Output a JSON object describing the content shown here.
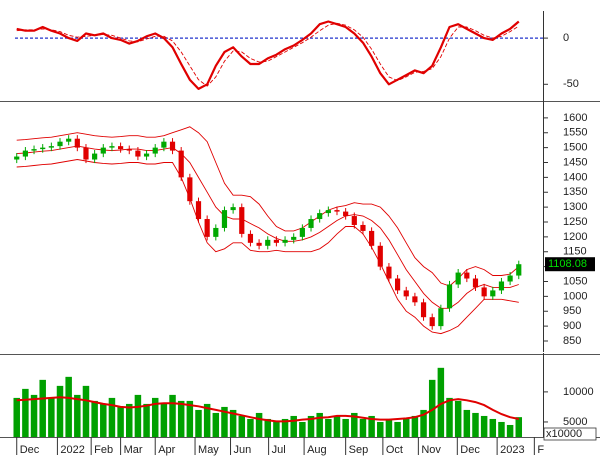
{
  "chart_data": [
    {
      "type": "line",
      "ylim": [
        -67,
        25
      ],
      "yticks": [
        0,
        -50
      ],
      "zero_line_color": "#2233cc",
      "series": [
        {
          "color": "#e00000",
          "width": 2.2,
          "dashed": false,
          "values": [
            10,
            8,
            8,
            12,
            8,
            5,
            0,
            -3,
            5,
            3,
            5,
            0,
            -2,
            -6,
            -3,
            2,
            5,
            0,
            -10,
            -28,
            -45,
            -55,
            -50,
            -30,
            -15,
            -10,
            -20,
            -28,
            -28,
            -22,
            -18,
            -12,
            -8,
            -2,
            5,
            15,
            18,
            15,
            12,
            5,
            -5,
            -20,
            -38,
            -50,
            -45,
            -40,
            -35,
            -38,
            -30,
            -10,
            12,
            15,
            10,
            5,
            0,
            -2,
            5,
            10,
            18
          ]
        },
        {
          "color": "#e00000",
          "width": 0.9,
          "dashed": true,
          "values": [
            8,
            9,
            9,
            10,
            9,
            7,
            3,
            1,
            2,
            3,
            4,
            3,
            0,
            -3,
            -4,
            -1,
            2,
            2,
            -3,
            -15,
            -30,
            -45,
            -52,
            -42,
            -25,
            -14,
            -15,
            -22,
            -26,
            -25,
            -20,
            -15,
            -10,
            -5,
            1,
            8,
            14,
            16,
            14,
            9,
            1,
            -12,
            -28,
            -42,
            -46,
            -42,
            -37,
            -36,
            -33,
            -20,
            0,
            12,
            12,
            8,
            3,
            0,
            2,
            7,
            13
          ]
        }
      ]
    },
    {
      "type": "candlestick",
      "ylim": [
        813,
        1650
      ],
      "yticks": [
        850,
        900,
        950,
        1000,
        1050,
        1100,
        1150,
        1200,
        1250,
        1300,
        1350,
        1400,
        1450,
        1500,
        1550,
        1600
      ],
      "up_color": "#00a800",
      "down_color": "#e00000",
      "open": [
        1460,
        1470,
        1490,
        1495,
        1500,
        1505,
        1520,
        1530,
        1500,
        1460,
        1480,
        1500,
        1505,
        1495,
        1490,
        1470,
        1480,
        1500,
        1520,
        1490,
        1400,
        1320,
        1260,
        1200,
        1230,
        1290,
        1300,
        1210,
        1180,
        1170,
        1190,
        1180,
        1190,
        1200,
        1230,
        1260,
        1280,
        1290,
        1285,
        1270,
        1240,
        1220,
        1170,
        1100,
        1060,
        1020,
        1000,
        980,
        930,
        900,
        960,
        1040,
        1080,
        1060,
        1030,
        1000,
        1020,
        1050,
        1070
      ],
      "high": [
        1482,
        1502,
        1507,
        1512,
        1517,
        1532,
        1542,
        1542,
        1512,
        1492,
        1512,
        1517,
        1517,
        1507,
        1502,
        1492,
        1512,
        1532,
        1532,
        1502,
        1412,
        1332,
        1272,
        1242,
        1302,
        1312,
        1312,
        1222,
        1192,
        1202,
        1202,
        1202,
        1212,
        1242,
        1272,
        1292,
        1302,
        1302,
        1297,
        1282,
        1252,
        1232,
        1182,
        1112,
        1072,
        1032,
        1012,
        992,
        942,
        972,
        1052,
        1092,
        1092,
        1072,
        1042,
        1032,
        1062,
        1082,
        1120
      ],
      "low": [
        1448,
        1458,
        1478,
        1483,
        1488,
        1493,
        1508,
        1488,
        1448,
        1448,
        1468,
        1488,
        1483,
        1478,
        1458,
        1458,
        1468,
        1488,
        1478,
        1388,
        1308,
        1248,
        1188,
        1188,
        1218,
        1278,
        1198,
        1168,
        1158,
        1158,
        1168,
        1168,
        1178,
        1188,
        1218,
        1248,
        1268,
        1273,
        1258,
        1228,
        1208,
        1158,
        1088,
        1048,
        1008,
        988,
        968,
        918,
        888,
        888,
        948,
        1028,
        1048,
        1018,
        988,
        988,
        1008,
        1038,
        1058
      ],
      "close": [
        1470,
        1490,
        1495,
        1500,
        1505,
        1520,
        1530,
        1500,
        1460,
        1480,
        1500,
        1505,
        1495,
        1490,
        1470,
        1480,
        1500,
        1520,
        1490,
        1400,
        1320,
        1260,
        1200,
        1230,
        1290,
        1300,
        1210,
        1180,
        1170,
        1190,
        1180,
        1190,
        1200,
        1230,
        1260,
        1280,
        1290,
        1285,
        1270,
        1240,
        1220,
        1170,
        1100,
        1060,
        1020,
        1000,
        980,
        930,
        900,
        960,
        1040,
        1080,
        1060,
        1030,
        1000,
        1020,
        1050,
        1070,
        1108.08
      ],
      "last_price_color": "#00e000",
      "bands": {
        "color": "#e00000",
        "upper": [
          1525,
          1527,
          1530,
          1533,
          1535,
          1540,
          1545,
          1550,
          1545,
          1540,
          1537,
          1535,
          1537,
          1540,
          1540,
          1535,
          1535,
          1540,
          1550,
          1560,
          1570,
          1550,
          1520,
          1450,
          1380,
          1340,
          1340,
          1335,
          1310,
          1270,
          1235,
          1220,
          1220,
          1230,
          1250,
          1270,
          1290,
          1300,
          1305,
          1315,
          1310,
          1310,
          1300,
          1270,
          1230,
          1180,
          1130,
          1100,
          1080,
          1045,
          1035,
          1060,
          1090,
          1100,
          1090,
          1070,
          1070,
          1075,
          1100
        ],
        "middle": [
          1480,
          1482,
          1485,
          1488,
          1490,
          1495,
          1500,
          1505,
          1500,
          1495,
          1492,
          1490,
          1492,
          1495,
          1495,
          1490,
          1490,
          1495,
          1500,
          1480,
          1450,
          1400,
          1350,
          1300,
          1270,
          1260,
          1260,
          1245,
          1230,
          1210,
          1195,
          1185,
          1185,
          1190,
          1200,
          1215,
          1235,
          1255,
          1270,
          1275,
          1270,
          1255,
          1230,
          1190,
          1140,
          1090,
          1050,
          1010,
          980,
          960,
          960,
          980,
          1010,
          1030,
          1040,
          1030,
          1030,
          1030,
          1040
        ],
        "lower": [
          1435,
          1437,
          1440,
          1443,
          1445,
          1450,
          1455,
          1460,
          1455,
          1450,
          1447,
          1445,
          1447,
          1450,
          1450,
          1445,
          1445,
          1450,
          1450,
          1400,
          1330,
          1250,
          1180,
          1150,
          1160,
          1180,
          1180,
          1155,
          1150,
          1150,
          1155,
          1150,
          1150,
          1150,
          1150,
          1160,
          1180,
          1210,
          1235,
          1235,
          1210,
          1165,
          1110,
          1050,
          990,
          950,
          930,
          900,
          880,
          875,
          885,
          900,
          930,
          960,
          990,
          990,
          990,
          985,
          980
        ]
      }
    },
    {
      "type": "bar",
      "ylim": [
        2500,
        15800
      ],
      "yticks": [
        5000,
        10000
      ],
      "unit_label": "x10000",
      "color": "#00a000",
      "values": [
        9000,
        10500,
        9500,
        12000,
        9000,
        11000,
        12500,
        9500,
        11000,
        8500,
        8000,
        9000,
        7500,
        8000,
        9500,
        8000,
        9000,
        8000,
        9500,
        8500,
        8500,
        7000,
        8000,
        6500,
        7500,
        7000,
        6000,
        5500,
        6500,
        5500,
        5000,
        5500,
        6000,
        5000,
        6000,
        6500,
        5500,
        6000,
        5500,
        6500,
        5500,
        6000,
        5000,
        5500,
        5000,
        5500,
        6000,
        7000,
        12000,
        14000,
        9000,
        8500,
        7000,
        6500,
        6000,
        5500,
        5000,
        4500,
        5800
      ],
      "ma": {
        "color": "#e00000",
        "values": [
          8600,
          8700,
          8800,
          8900,
          9000,
          9100,
          9000,
          8800,
          8600,
          8300,
          8000,
          7800,
          7500,
          7400,
          7500,
          7700,
          8000,
          8100,
          8100,
          8000,
          7800,
          7600,
          7300,
          7000,
          6700,
          6400,
          6100,
          5800,
          5500,
          5300,
          5100,
          5100,
          5200,
          5400,
          5500,
          5700,
          5800,
          6000,
          6000,
          5900,
          5700,
          5500,
          5400,
          5400,
          5500,
          5600,
          5800,
          6200,
          7000,
          8000,
          8600,
          8800,
          8600,
          8300,
          7800,
          7000,
          6300,
          5800,
          5500
        ]
      },
      "xlim": [
        -0.2,
        60.8
      ],
      "xticks": [
        {
          "value": 0,
          "label": "Dec"
        },
        {
          "value": 4.7,
          "label": "2022"
        },
        {
          "value": 8.6,
          "label": "Feb"
        },
        {
          "value": 12,
          "label": "Mar"
        },
        {
          "value": 16,
          "label": "Apr"
        },
        {
          "value": 20.6,
          "label": "May"
        },
        {
          "value": 24.7,
          "label": "Jun"
        },
        {
          "value": 29.1,
          "label": "Jul"
        },
        {
          "value": 33.2,
          "label": "Aug"
        },
        {
          "value": 38,
          "label": "Sep"
        },
        {
          "value": 42.3,
          "label": "Oct"
        },
        {
          "value": 46.4,
          "label": "Nov"
        },
        {
          "value": 50.9,
          "label": "Dec"
        },
        {
          "value": 55.5,
          "label": "2023"
        },
        {
          "value": 59.8,
          "label": "F"
        }
      ]
    }
  ]
}
